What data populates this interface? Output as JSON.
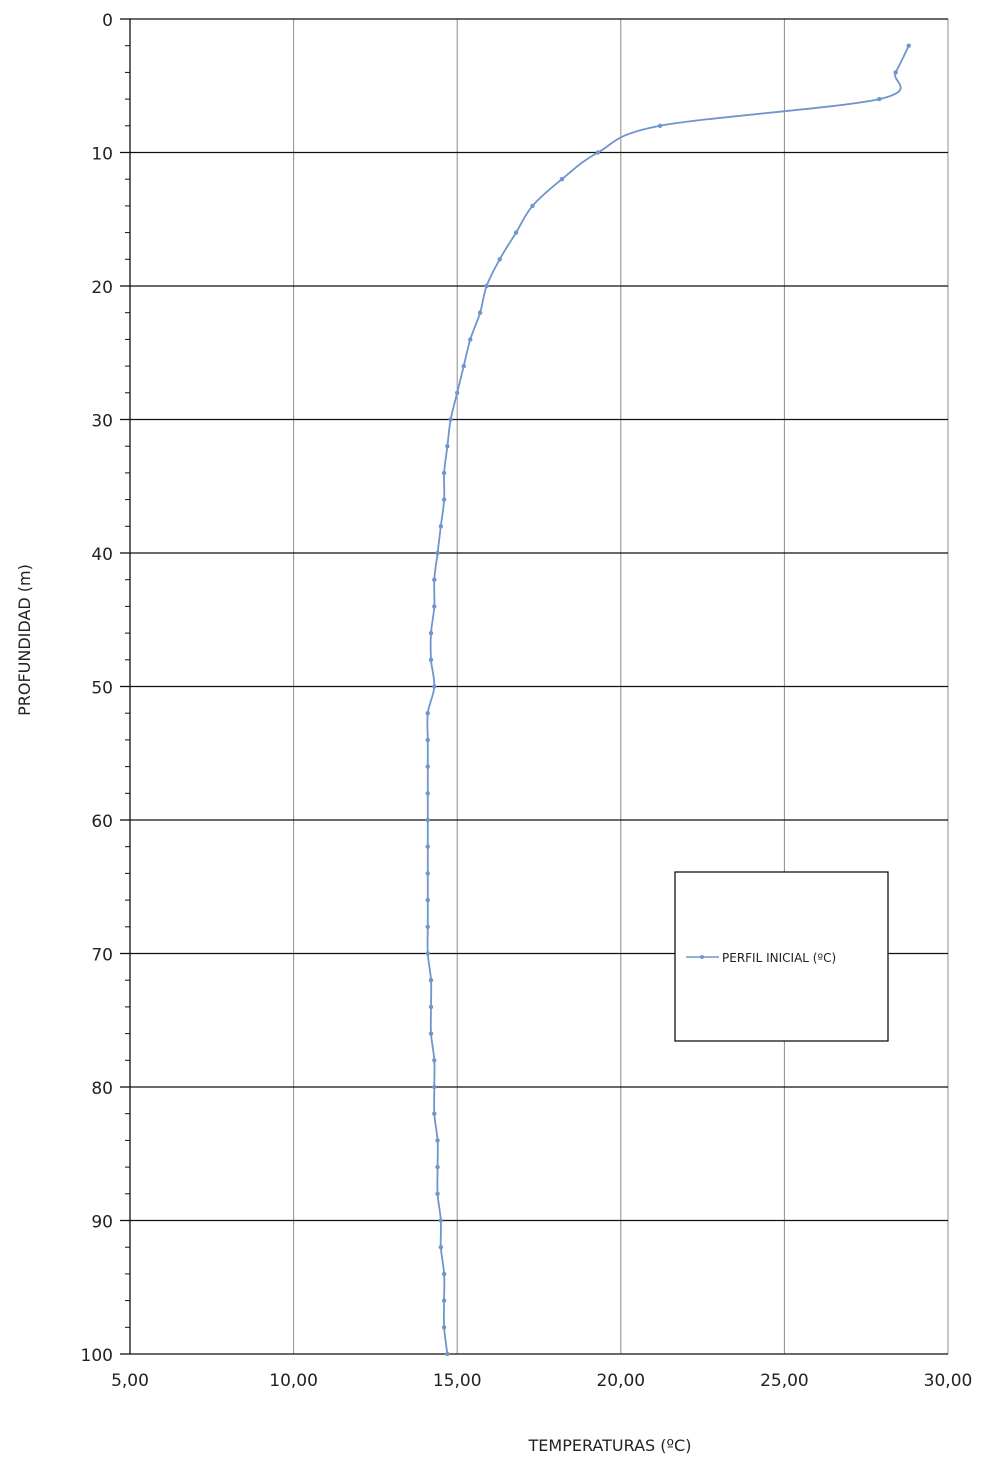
{
  "chart_data": {
    "type": "line",
    "title": "",
    "xlabel": "TEMPERATURAS (ºC)",
    "ylabel": "PROFUNDIDAD (m)",
    "xlim": [
      5,
      30
    ],
    "ylim": [
      0,
      100
    ],
    "y_inverted": true,
    "x_ticks": [
      "5,00",
      "10,00",
      "15,00",
      "20,00",
      "25,00",
      "30,00"
    ],
    "y_ticks": [
      "0",
      "10",
      "20",
      "30",
      "40",
      "50",
      "60",
      "70",
      "80",
      "90",
      "100"
    ],
    "grid": true,
    "legend_position": "right",
    "series": [
      {
        "name": "PERFIL INICIAL (ºC)",
        "color": "#6f95cc",
        "points": [
          [
            28.8,
            2
          ],
          [
            28.4,
            4
          ],
          [
            27.9,
            6
          ],
          [
            21.2,
            8
          ],
          [
            19.3,
            10
          ],
          [
            18.2,
            12
          ],
          [
            17.3,
            14
          ],
          [
            16.8,
            16
          ],
          [
            16.3,
            18
          ],
          [
            15.9,
            20
          ],
          [
            15.7,
            22
          ],
          [
            15.4,
            24
          ],
          [
            15.2,
            26
          ],
          [
            15.0,
            28
          ],
          [
            14.8,
            30
          ],
          [
            14.7,
            32
          ],
          [
            14.6,
            34
          ],
          [
            14.6,
            36
          ],
          [
            14.5,
            38
          ],
          [
            14.4,
            40
          ],
          [
            14.3,
            42
          ],
          [
            14.3,
            44
          ],
          [
            14.2,
            46
          ],
          [
            14.2,
            48
          ],
          [
            14.3,
            50
          ],
          [
            14.1,
            52
          ],
          [
            14.1,
            54
          ],
          [
            14.1,
            56
          ],
          [
            14.1,
            58
          ],
          [
            14.1,
            60
          ],
          [
            14.1,
            62
          ],
          [
            14.1,
            64
          ],
          [
            14.1,
            66
          ],
          [
            14.1,
            68
          ],
          [
            14.1,
            70
          ],
          [
            14.2,
            72
          ],
          [
            14.2,
            74
          ],
          [
            14.2,
            76
          ],
          [
            14.3,
            78
          ],
          [
            14.3,
            80
          ],
          [
            14.3,
            82
          ],
          [
            14.4,
            84
          ],
          [
            14.4,
            86
          ],
          [
            14.4,
            88
          ],
          [
            14.5,
            90
          ],
          [
            14.5,
            92
          ],
          [
            14.6,
            94
          ],
          [
            14.6,
            96
          ],
          [
            14.6,
            98
          ],
          [
            14.7,
            100
          ]
        ]
      }
    ]
  }
}
